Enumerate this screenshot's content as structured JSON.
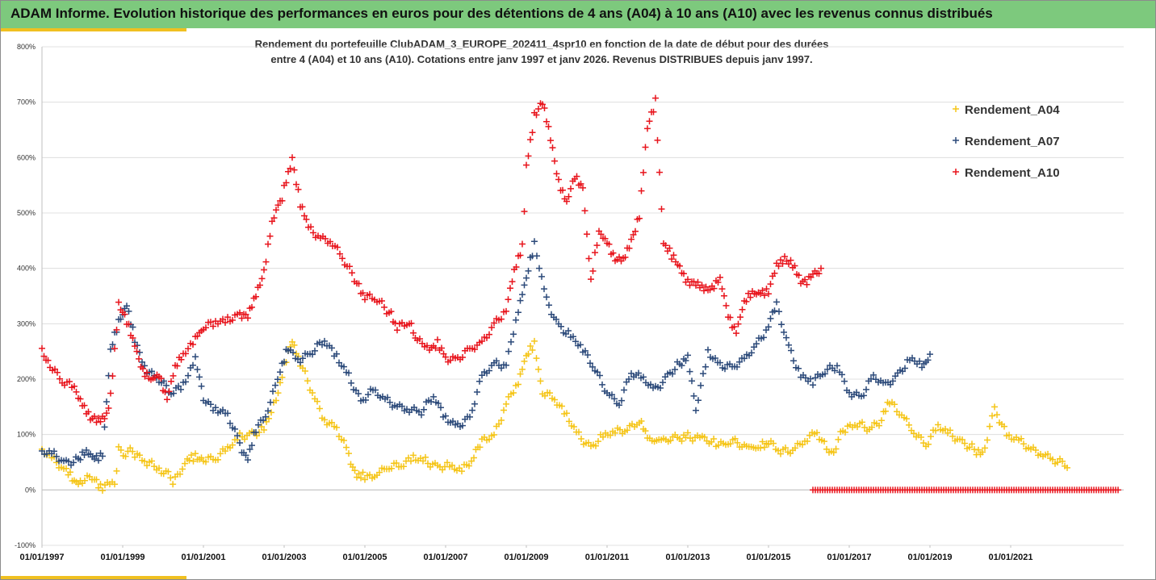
{
  "header": {
    "title": "ADAM Informe. Evolution historique des performances en euros pour des détentions de 4 ans (A04) à 10 ans (A10) avec les revenus connus distribués"
  },
  "colors": {
    "header_bg": "#7dc97d",
    "accent": "#f0c020",
    "a04": "#f5c518",
    "a07": "#2c4a7a",
    "a10": "#e8141c",
    "grid": "#d9d9d9",
    "zero_line": "#bfbfbf"
  },
  "chart_data": {
    "type": "scatter",
    "title_lines": [
      "Rendement du portefeuille ClubADAM_3_EUROPE_202411_4spr10  en fonction de la date de début pour des durées",
      "entre 4 (A04) et 10 ans (A10). Cotations entre janv 1997 et janv 2026. Revenus DISTRIBUES depuis janv 1997."
    ],
    "ylim": [
      -100,
      800
    ],
    "y_tick_values": [
      -100,
      0,
      100,
      200,
      300,
      400,
      500,
      600,
      700,
      800
    ],
    "y_ticks": [
      "-100%",
      "0%",
      "100%",
      "200%",
      "300%",
      "400%",
      "500%",
      "600%",
      "700%",
      "800%"
    ],
    "xlim": [
      1997.0,
      2023.8
    ],
    "x_tick_values": [
      1997,
      1999,
      2001,
      2003,
      2005,
      2007,
      2009,
      2011,
      2013,
      2015,
      2017,
      2019,
      2021
    ],
    "x_ticks": [
      "01/01/1997",
      "01/01/1999",
      "01/01/2001",
      "01/01/2003",
      "01/01/2005",
      "01/01/2007",
      "01/01/2009",
      "01/01/2011",
      "01/01/2013",
      "01/01/2015",
      "01/01/2017",
      "01/01/2019",
      "01/01/2021"
    ],
    "marker": "+",
    "legend_position": "right",
    "series": [
      {
        "name": "Rendement_A04",
        "x": [
          1997.0,
          1997.3,
          1997.6,
          1997.8,
          1998.0,
          1998.3,
          1998.5,
          1998.8,
          1998.9,
          1999.3,
          1999.6,
          1999.9,
          2000.3,
          2000.6,
          2000.8,
          2001.0,
          2001.3,
          2001.6,
          2001.9,
          2002.2,
          2002.5,
          2002.8,
          2003.0,
          2003.2,
          2003.4,
          2003.7,
          2004.0,
          2004.3,
          2004.6,
          2004.8,
          2005.0,
          2005.3,
          2005.6,
          2005.9,
          2006.2,
          2006.5,
          2006.8,
          2007.1,
          2007.4,
          2007.7,
          2007.9,
          2008.2,
          2008.5,
          2008.8,
          2009.0,
          2009.2,
          2009.4,
          2009.7,
          2010.0,
          2010.3,
          2010.6,
          2010.9,
          2011.2,
          2011.5,
          2011.8,
          2012.0,
          2012.4,
          2012.8,
          2013.0,
          2013.3,
          2013.7,
          2014.0,
          2014.4,
          2014.8,
          2015.0,
          2015.3,
          2015.6,
          2015.9,
          2016.2,
          2016.5,
          2016.9,
          2017.2,
          2017.5,
          2017.8,
          2018.0,
          2018.3,
          2018.6,
          2018.9,
          2019.2,
          2019.5,
          2019.8,
          2020.1,
          2020.3,
          2020.6,
          2020.9,
          2021.2,
          2021.5,
          2021.8,
          2022.1,
          2022.4
        ],
        "values": [
          68,
          50,
          35,
          10,
          20,
          18,
          8,
          15,
          70,
          65,
          45,
          40,
          15,
          50,
          60,
          60,
          55,
          70,
          95,
          105,
          110,
          160,
          230,
          265,
          225,
          175,
          130,
          115,
          60,
          30,
          20,
          35,
          45,
          40,
          55,
          55,
          45,
          40,
          30,
          60,
          85,
          95,
          160,
          200,
          240,
          260,
          180,
          160,
          130,
          100,
          80,
          95,
          100,
          110,
          130,
          90,
          90,
          95,
          100,
          95,
          85,
          90,
          80,
          75,
          85,
          65,
          75,
          95,
          105,
          60,
          110,
          115,
          110,
          130,
          155,
          140,
          110,
          80,
          110,
          100,
          90,
          75,
          65,
          150,
          95,
          85,
          75,
          70,
          55,
          40
        ]
      },
      {
        "name": "Rendement_A07",
        "x": [
          1997.0,
          1997.3,
          1997.6,
          1997.9,
          1998.1,
          1998.3,
          1998.5,
          1998.7,
          1998.9,
          1999.1,
          1999.3,
          1999.6,
          1999.9,
          2000.2,
          2000.5,
          2000.8,
          2001.0,
          2001.3,
          2001.6,
          2001.9,
          2002.1,
          2002.3,
          2002.6,
          2002.9,
          2003.1,
          2003.4,
          2003.7,
          2004.0,
          2004.3,
          2004.6,
          2004.9,
          2005.2,
          2005.5,
          2005.8,
          2006.1,
          2006.4,
          2006.7,
          2007.0,
          2007.3,
          2007.6,
          2007.9,
          2008.2,
          2008.5,
          2008.8,
          2009.0,
          2009.2,
          2009.5,
          2009.8,
          2010.1,
          2010.4,
          2010.7,
          2011.0,
          2011.3,
          2011.6,
          2011.9,
          2012.2,
          2012.5,
          2012.8,
          2013.0,
          2013.2,
          2013.5,
          2013.8,
          2014.1,
          2014.4,
          2014.7,
          2015.0,
          2015.2,
          2015.5,
          2015.8,
          2016.1,
          2016.4,
          2016.7,
          2017.0,
          2017.3,
          2017.6,
          2017.9,
          2018.2,
          2018.5,
          2018.8,
          2019.0
        ],
        "values": [
          65,
          60,
          50,
          60,
          65,
          55,
          70,
          250,
          300,
          340,
          270,
          220,
          200,
          170,
          190,
          240,
          160,
          150,
          140,
          80,
          60,
          105,
          150,
          220,
          255,
          240,
          250,
          265,
          240,
          210,
          160,
          175,
          160,
          155,
          150,
          140,
          165,
          130,
          120,
          130,
          200,
          225,
          230,
          330,
          380,
          440,
          340,
          300,
          280,
          250,
          215,
          180,
          160,
          210,
          195,
          180,
          210,
          230,
          240,
          140,
          250,
          230,
          220,
          230,
          260,
          300,
          330,
          260,
          210,
          195,
          210,
          225,
          180,
          170,
          200,
          185,
          210,
          240,
          225,
          245
        ]
      },
      {
        "name": "Rendement_A10",
        "x": [
          1997.0,
          1997.2,
          1997.5,
          1997.8,
          1998.0,
          1998.2,
          1998.4,
          1998.6,
          1998.7,
          1998.9,
          1999.1,
          1999.3,
          1999.5,
          1999.7,
          1999.9,
          2000.1,
          2000.3,
          2000.5,
          2000.8,
          2001.0,
          2001.3,
          2001.6,
          2001.9,
          2002.1,
          2002.3,
          2002.5,
          2002.7,
          2002.9,
          2003.0,
          2003.2,
          2003.4,
          2003.6,
          2003.9,
          2004.2,
          2004.5,
          2004.8,
          2005.0,
          2005.3,
          2005.6,
          2005.8,
          2006.1,
          2006.3,
          2006.6,
          2006.8,
          2007.0,
          2007.3,
          2007.6,
          2007.9,
          2008.2,
          2008.5,
          2008.7,
          2008.9,
          2009.0,
          2009.2,
          2009.4,
          2009.6,
          2009.8,
          2010.0,
          2010.2,
          2010.4,
          2010.6,
          2010.8,
          2011.0,
          2011.2,
          2011.4,
          2011.6,
          2011.8,
          2012.0,
          2012.2,
          2012.4,
          2012.6,
          2012.8,
          2013.0,
          2013.2,
          2013.4,
          2013.6,
          2013.8,
          2014.0,
          2014.2,
          2014.4,
          2014.6,
          2014.8,
          2015.0,
          2015.2,
          2015.4,
          2015.6,
          2015.8,
          2016.0,
          2016.1,
          2016.3
        ],
        "values": [
          250,
          230,
          195,
          180,
          160,
          130,
          120,
          140,
          170,
          340,
          300,
          260,
          220,
          195,
          205,
          170,
          220,
          240,
          270,
          290,
          300,
          310,
          320,
          310,
          350,
          400,
          480,
          520,
          540,
          600,
          520,
          470,
          460,
          450,
          410,
          370,
          350,
          340,
          320,
          290,
          300,
          270,
          250,
          270,
          240,
          240,
          250,
          260,
          300,
          330,
          390,
          440,
          580,
          680,
          700,
          630,
          560,
          520,
          560,
          550,
          380,
          460,
          450,
          420,
          410,
          450,
          500,
          650,
          700,
          450,
          420,
          400,
          380,
          370,
          360,
          370,
          380,
          310,
          290,
          340,
          350,
          360,
          360,
          400,
          420,
          410,
          370,
          380,
          390,
          400
        ]
      }
    ],
    "zero_series": {
      "x_start": 2016.1,
      "x_end": 2023.7,
      "value": 0
    }
  }
}
